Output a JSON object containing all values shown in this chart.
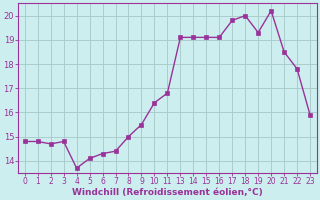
{
  "x_indices": [
    0,
    1,
    2,
    3,
    4,
    5,
    6,
    7,
    8,
    9,
    10,
    11,
    12,
    13,
    14,
    15,
    16,
    17,
    18,
    19,
    20,
    21,
    22
  ],
  "y": [
    14.8,
    14.8,
    14.7,
    14.8,
    13.7,
    14.1,
    14.3,
    14.4,
    15.0,
    15.5,
    16.4,
    16.8,
    19.1,
    19.1,
    19.1,
    19.1,
    19.8,
    20.0,
    19.3,
    20.2,
    18.5,
    17.8,
    15.9
  ],
  "line_color": "#993399",
  "marker_color": "#993399",
  "bg_color": "#cceeee",
  "grid_color": "#aacccc",
  "tick_color": "#993399",
  "xlabel": "Windchill (Refroidissement éolien,°C)",
  "ylim": [
    13.5,
    20.5
  ],
  "xlim": [
    -0.5,
    22.5
  ],
  "yticks": [
    14,
    15,
    16,
    17,
    18,
    19,
    20
  ],
  "ytick_labels": [
    "14",
    "15",
    "16",
    "17",
    "18",
    "19",
    "20"
  ],
  "xtick_positions": [
    0,
    1,
    2,
    3,
    4,
    5,
    6,
    7,
    8,
    9,
    10,
    11,
    12,
    13,
    14,
    15,
    16,
    17,
    18,
    19,
    20,
    21,
    22
  ],
  "xtick_labels": [
    "0",
    "1",
    "2",
    "3",
    "4",
    "5",
    "6",
    "7",
    "8",
    "9",
    "10",
    "11",
    "13",
    "14",
    "15",
    "16",
    "17",
    "18",
    "19",
    "20",
    "21",
    "22",
    "23"
  ],
  "xlabel_fontsize": 6.5,
  "ytick_fontsize": 6,
  "xtick_fontsize": 5.5,
  "linewidth": 1.0,
  "markersize": 2.5
}
